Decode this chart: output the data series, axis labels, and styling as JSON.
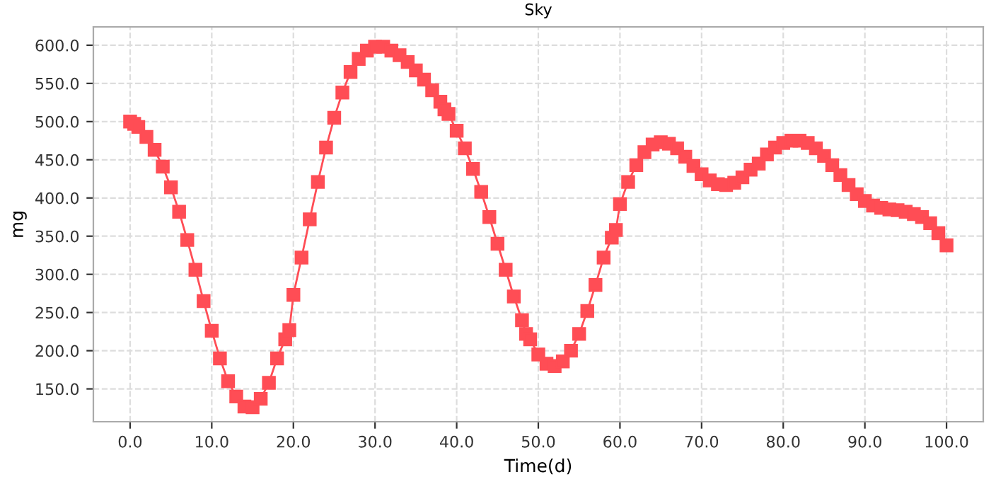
{
  "chart_data": {
    "type": "line",
    "title": "Sky",
    "xlabel": "Time(d)",
    "ylabel": "mg",
    "x": [
      0,
      0.5,
      1,
      2,
      3,
      4,
      5,
      6,
      7,
      8,
      9,
      10,
      11,
      12,
      13,
      14,
      15,
      16,
      17,
      18,
      19,
      19.5,
      20,
      21,
      22,
      23,
      24,
      25,
      26,
      27,
      28,
      29,
      30,
      31,
      32,
      33,
      34,
      35,
      36,
      37,
      38,
      38.5,
      39,
      40,
      41,
      42,
      43,
      44,
      45,
      46,
      47,
      48,
      48.5,
      49,
      50,
      51,
      52,
      53,
      54,
      55,
      56,
      57,
      58,
      59,
      59.5,
      60,
      61,
      62,
      63,
      64,
      65,
      66,
      67,
      68,
      69,
      70,
      71,
      72,
      73,
      74,
      75,
      76,
      77,
      78,
      79,
      80,
      81,
      82,
      83,
      84,
      85,
      86,
      87,
      88,
      89,
      90,
      91,
      92,
      93,
      94,
      95,
      96,
      97,
      98,
      99,
      100
    ],
    "series": [
      {
        "color": "#ff4d55",
        "values": [
          500,
          497,
          493,
          480,
          463,
          441,
          414,
          382,
          345,
          306,
          265,
          226,
          190,
          160,
          140,
          127,
          126,
          137,
          158,
          190,
          215,
          227,
          273,
          322,
          372,
          421,
          466,
          505,
          538,
          565,
          582,
          593,
          598,
          598,
          593,
          587,
          578,
          567,
          555,
          541,
          526,
          516,
          510,
          488,
          465,
          438,
          408,
          375,
          340,
          306,
          271,
          240,
          222,
          215,
          195,
          183,
          180,
          186,
          200,
          222,
          252,
          286,
          322,
          348,
          358,
          392,
          421,
          443,
          460,
          470,
          473,
          471,
          465,
          454,
          442,
          431,
          423,
          418,
          417,
          420,
          427,
          437,
          445,
          457,
          466,
          472,
          475,
          475,
          472,
          465,
          455,
          443,
          430,
          417,
          405,
          396,
          390,
          387,
          385,
          384,
          382,
          379,
          375,
          367,
          354,
          338
        ]
      }
    ],
    "xlim": [
      -4.5,
      104.5
    ],
    "ylim": [
      107,
      624
    ],
    "xticks": [
      {
        "value": 0,
        "label": "0.0"
      },
      {
        "value": 10,
        "label": "10.0"
      },
      {
        "value": 20,
        "label": "20.0"
      },
      {
        "value": 30,
        "label": "30.0"
      },
      {
        "value": 40,
        "label": "40.0"
      },
      {
        "value": 50,
        "label": "50.0"
      },
      {
        "value": 60,
        "label": "60.0"
      },
      {
        "value": 70,
        "label": "70.0"
      },
      {
        "value": 80,
        "label": "80.0"
      },
      {
        "value": 90,
        "label": "90.0"
      },
      {
        "value": 100,
        "label": "100.0"
      }
    ],
    "yticks": [
      {
        "value": 150,
        "label": "150.0"
      },
      {
        "value": 200,
        "label": "200.0"
      },
      {
        "value": 250,
        "label": "250.0"
      },
      {
        "value": 300,
        "label": "300.0"
      },
      {
        "value": 350,
        "label": "350.0"
      },
      {
        "value": 400,
        "label": "400.0"
      },
      {
        "value": 450,
        "label": "450.0"
      },
      {
        "value": 500,
        "label": "500.0"
      },
      {
        "value": 550,
        "label": "550.0"
      },
      {
        "value": 600,
        "label": "600.0"
      }
    ],
    "grid": true,
    "marker": "square",
    "line_style": "solid",
    "legend": false
  }
}
